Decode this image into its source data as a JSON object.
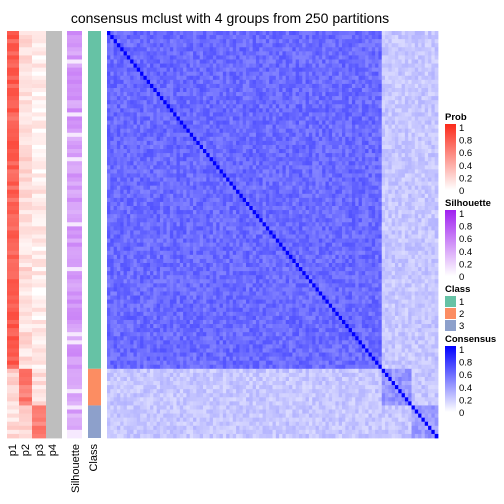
{
  "chart_data": {
    "type": "heatmap",
    "title": "consensus mclust with 4 groups from 250 partitions",
    "n_samples": 100,
    "annotation_columns": [
      "p1",
      "p2",
      "p3",
      "p4",
      "Silhouette",
      "Class"
    ],
    "class_counts": [
      {
        "class": 1,
        "count": 83
      },
      {
        "class": 2,
        "count": 9
      },
      {
        "class": 3,
        "count": 8
      }
    ],
    "mean_prob": {
      "class1": [
        0.74,
        0.16,
        0.08,
        0.0
      ],
      "class2": [
        0.2,
        0.62,
        0.16,
        0.0
      ],
      "class3": [
        0.15,
        0.2,
        0.62,
        0.0
      ]
    },
    "mean_silhouette": {
      "class1": 0.45,
      "class2": 0.35,
      "class3": 0.4
    },
    "consensus_within": {
      "class1": 0.58,
      "class2": 0.42,
      "class3": 0.4
    },
    "consensus_between": 0.22,
    "diagonal_value": 1,
    "legends": [
      {
        "title": "Prob",
        "low": "#ffffff",
        "high": "#fb2a1a",
        "ticks": [
          "1",
          "0.8",
          "0.6",
          "0.4",
          "0.2",
          "0"
        ]
      },
      {
        "title": "Silhouette",
        "low": "#ffffff",
        "high": "#a020f0",
        "ticks": [
          "1",
          "0.8",
          "0.6",
          "0.4",
          "0.2",
          "0"
        ]
      },
      {
        "title": "Class",
        "items": [
          {
            "label": "1",
            "color": "#66c2a5"
          },
          {
            "label": "2",
            "color": "#fc8d62"
          },
          {
            "label": "3",
            "color": "#8da0cb"
          }
        ]
      },
      {
        "title": "Consensus",
        "low": "#ffffff",
        "high": "#0000ff",
        "ticks": [
          "1",
          "0.8",
          "0.6",
          "0.4",
          "0.2",
          "0"
        ]
      }
    ],
    "colors": {
      "prob_high": "#fb2a1a",
      "silhouette_high": "#a020f0",
      "consensus_high": "#0000ff",
      "p4_fill": "#bebebe"
    }
  }
}
